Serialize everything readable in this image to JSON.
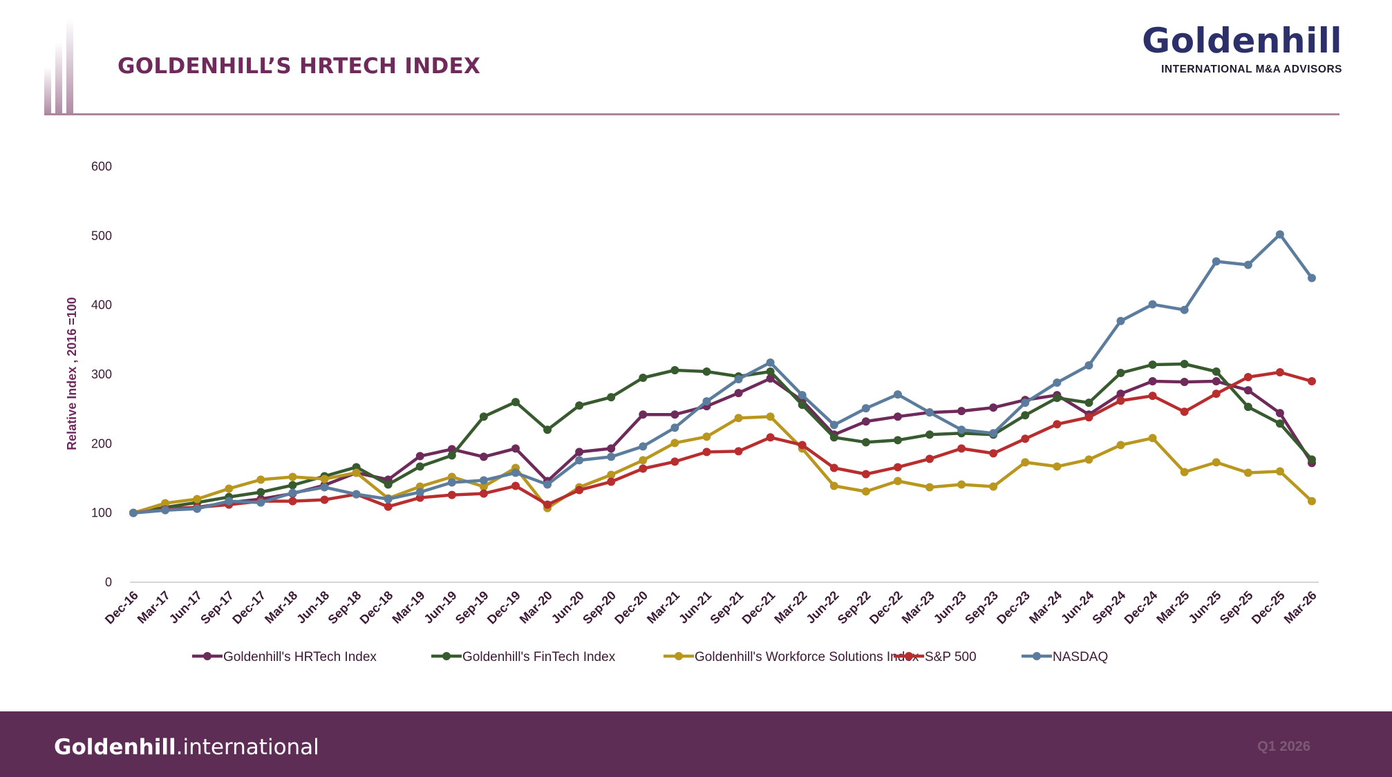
{
  "header": {
    "title": "GOLDENHILL’S HRTECH INDEX",
    "logo_text": "Goldenhill",
    "logo_subtitle": "INTERNATIONAL M&A ADVISORS"
  },
  "footer": {
    "brand_bold": "Goldenhill",
    "brand_rest": ".international",
    "period": "Q1 2026"
  },
  "colors": {
    "accent": "#6e2a5a",
    "footer_bg": "#5e2d56",
    "axis_text": "#3c1a35"
  },
  "chart_data": {
    "type": "line",
    "ylabel": "Relative Index , 2016 =100",
    "ylim": [
      0,
      600
    ],
    "yticks": [
      0,
      100,
      200,
      300,
      400,
      500,
      600
    ],
    "grid": false,
    "legend_position": "bottom",
    "categories": [
      "Dec-16",
      "Mar-17",
      "Jun-17",
      "Sep-17",
      "Dec-17",
      "Mar-18",
      "Jun-18",
      "Sep-18",
      "Dec-18",
      "Mar-19",
      "Jun-19",
      "Sep-19",
      "Dec-19",
      "Mar-20",
      "Jun-20",
      "Sep-20",
      "Dec-20",
      "Mar-21",
      "Jun-21",
      "Sep-21",
      "Dec-21",
      "Mar-22",
      "Jun-22",
      "Sep-22",
      "Dec-22",
      "Mar-23",
      "Jun-23",
      "Sep-23",
      "Dec-23",
      "Mar-24",
      "Jun-24",
      "Sep-24",
      "Dec-24",
      "Mar-25",
      "Jun-25",
      "Sep-25",
      "Dec-25",
      "Mar-26"
    ],
    "series": [
      {
        "name": "Goldenhill's HRTech Index",
        "color": "#6e2a5a",
        "values": [
          100,
          106,
          108,
          115,
          120,
          128,
          140,
          158,
          148,
          182,
          192,
          181,
          193,
          146,
          188,
          193,
          242,
          242,
          254,
          273,
          294,
          262,
          213,
          232,
          239,
          245,
          247,
          252,
          263,
          270,
          242,
          272,
          290,
          289,
          290,
          277,
          244,
          172
        ]
      },
      {
        "name": "Goldenhill's FinTech Index",
        "color": "#375a2e",
        "values": [
          100,
          108,
          115,
          123,
          130,
          140,
          153,
          166,
          141,
          167,
          183,
          239,
          260,
          220,
          255,
          267,
          295,
          306,
          304,
          297,
          304,
          256,
          209,
          202,
          205,
          213,
          215,
          213,
          241,
          266,
          259,
          302,
          314,
          315,
          304,
          253,
          229,
          177
        ]
      },
      {
        "name": "Goldenhill's Workforce Solutions Index",
        "color": "#b9961e",
        "values": [
          100,
          114,
          120,
          135,
          148,
          152,
          149,
          158,
          121,
          138,
          152,
          138,
          165,
          107,
          137,
          155,
          176,
          201,
          210,
          237,
          239,
          193,
          139,
          131,
          146,
          137,
          141,
          138,
          173,
          167,
          177,
          198,
          208,
          159,
          173,
          158,
          160,
          117
        ]
      },
      {
        "name": "S&P 500",
        "color": "#b82e2e",
        "values": [
          100,
          105,
          108,
          112,
          117,
          117,
          119,
          127,
          109,
          122,
          126,
          128,
          139,
          112,
          133,
          145,
          164,
          174,
          188,
          189,
          209,
          198,
          165,
          156,
          166,
          178,
          193,
          186,
          207,
          228,
          238,
          262,
          269,
          246,
          272,
          296,
          303,
          290
        ]
      },
      {
        "name": "NASDAQ",
        "color": "#5b7c9d",
        "values": [
          100,
          104,
          106,
          117,
          115,
          129,
          137,
          127,
          120,
          130,
          144,
          147,
          158,
          141,
          176,
          181,
          196,
          223,
          261,
          293,
          317,
          270,
          227,
          251,
          271,
          245,
          220,
          215,
          259,
          288,
          313,
          377,
          401,
          393,
          463,
          458,
          502,
          439
        ]
      }
    ]
  }
}
